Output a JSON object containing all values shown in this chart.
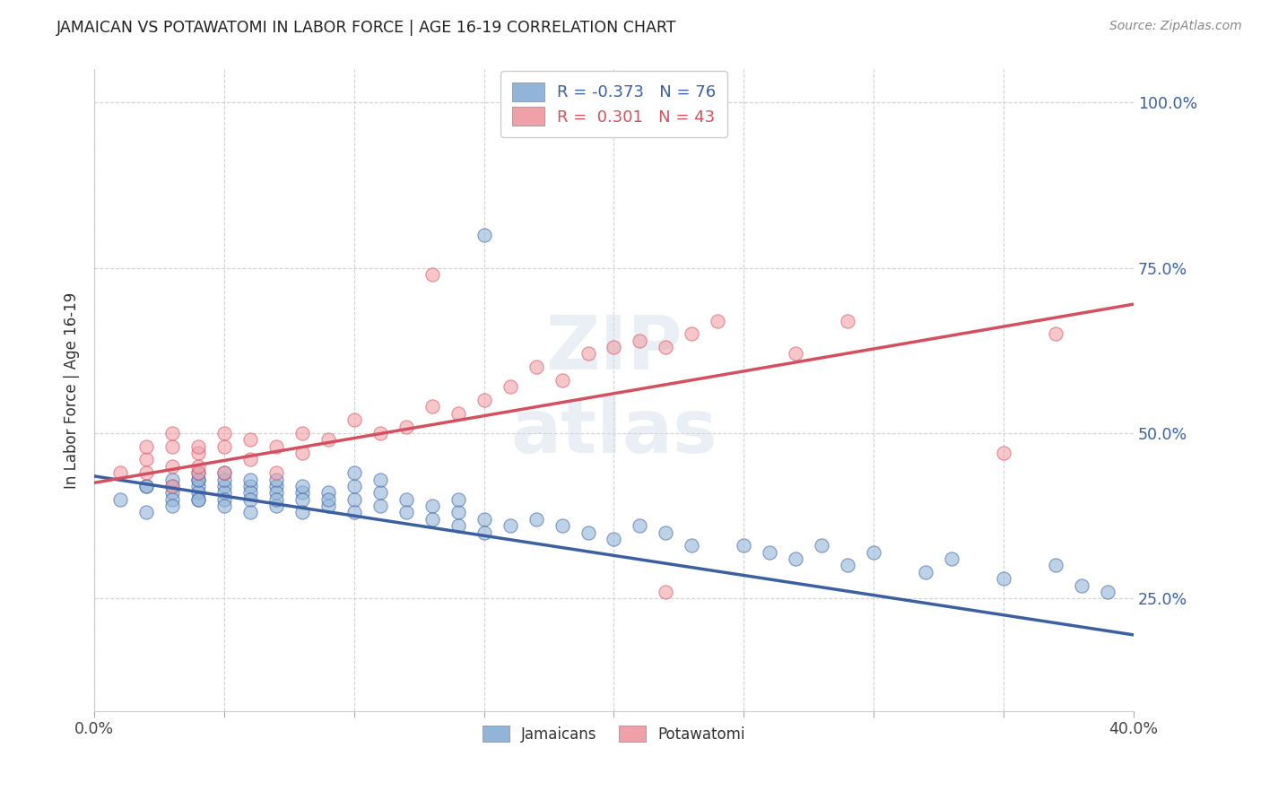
{
  "title": "JAMAICAN VS POTAWATOMI IN LABOR FORCE | AGE 16-19 CORRELATION CHART",
  "source": "Source: ZipAtlas.com",
  "ylabel": "In Labor Force | Age 16-19",
  "ytick_vals": [
    0.25,
    0.5,
    0.75,
    1.0
  ],
  "ytick_labels": [
    "25.0%",
    "50.0%",
    "75.0%",
    "100.0%"
  ],
  "xrange": [
    0.0,
    0.4
  ],
  "yrange": [
    0.08,
    1.05
  ],
  "blue_color": "#92b4d8",
  "pink_color": "#f0a0a8",
  "blue_line_color": "#3c5fa0",
  "pink_line_color": "#d45060",
  "blue_line_x": [
    0.0,
    0.4
  ],
  "blue_line_y": [
    0.435,
    0.195
  ],
  "pink_line_x": [
    0.0,
    0.4
  ],
  "pink_line_y": [
    0.425,
    0.695
  ],
  "blue_scatter_x": [
    0.01,
    0.02,
    0.02,
    0.02,
    0.03,
    0.03,
    0.03,
    0.03,
    0.03,
    0.04,
    0.04,
    0.04,
    0.04,
    0.04,
    0.04,
    0.04,
    0.05,
    0.05,
    0.05,
    0.05,
    0.05,
    0.05,
    0.06,
    0.06,
    0.06,
    0.06,
    0.06,
    0.07,
    0.07,
    0.07,
    0.07,
    0.07,
    0.08,
    0.08,
    0.08,
    0.08,
    0.09,
    0.09,
    0.09,
    0.1,
    0.1,
    0.1,
    0.1,
    0.11,
    0.11,
    0.11,
    0.12,
    0.12,
    0.13,
    0.13,
    0.14,
    0.14,
    0.14,
    0.15,
    0.15,
    0.15,
    0.16,
    0.17,
    0.18,
    0.19,
    0.2,
    0.21,
    0.22,
    0.23,
    0.25,
    0.26,
    0.27,
    0.28,
    0.29,
    0.3,
    0.32,
    0.33,
    0.35,
    0.37,
    0.38,
    0.39
  ],
  "blue_scatter_y": [
    0.4,
    0.42,
    0.42,
    0.38,
    0.42,
    0.41,
    0.4,
    0.39,
    0.43,
    0.43,
    0.42,
    0.41,
    0.4,
    0.43,
    0.44,
    0.4,
    0.42,
    0.41,
    0.43,
    0.4,
    0.39,
    0.44,
    0.42,
    0.41,
    0.4,
    0.43,
    0.38,
    0.42,
    0.41,
    0.39,
    0.43,
    0.4,
    0.41,
    0.4,
    0.42,
    0.38,
    0.41,
    0.39,
    0.4,
    0.4,
    0.42,
    0.38,
    0.44,
    0.41,
    0.39,
    0.43,
    0.4,
    0.38,
    0.39,
    0.37,
    0.38,
    0.36,
    0.4,
    0.37,
    0.35,
    0.8,
    0.36,
    0.37,
    0.36,
    0.35,
    0.34,
    0.36,
    0.35,
    0.33,
    0.33,
    0.32,
    0.31,
    0.33,
    0.3,
    0.32,
    0.29,
    0.31,
    0.28,
    0.3,
    0.27,
    0.26
  ],
  "pink_scatter_x": [
    0.01,
    0.02,
    0.02,
    0.02,
    0.03,
    0.03,
    0.03,
    0.03,
    0.04,
    0.04,
    0.04,
    0.04,
    0.05,
    0.05,
    0.05,
    0.06,
    0.06,
    0.07,
    0.07,
    0.08,
    0.08,
    0.09,
    0.1,
    0.11,
    0.12,
    0.13,
    0.14,
    0.15,
    0.16,
    0.17,
    0.18,
    0.19,
    0.2,
    0.21,
    0.22,
    0.23,
    0.24,
    0.27,
    0.29,
    0.35,
    0.37,
    0.22,
    0.13
  ],
  "pink_scatter_y": [
    0.44,
    0.46,
    0.44,
    0.48,
    0.48,
    0.45,
    0.5,
    0.42,
    0.47,
    0.44,
    0.48,
    0.45,
    0.5,
    0.44,
    0.48,
    0.49,
    0.46,
    0.48,
    0.44,
    0.47,
    0.5,
    0.49,
    0.52,
    0.5,
    0.51,
    0.54,
    0.53,
    0.55,
    0.57,
    0.6,
    0.58,
    0.62,
    0.63,
    0.64,
    0.26,
    0.65,
    0.67,
    0.62,
    0.67,
    0.47,
    0.65,
    0.63,
    0.74
  ]
}
